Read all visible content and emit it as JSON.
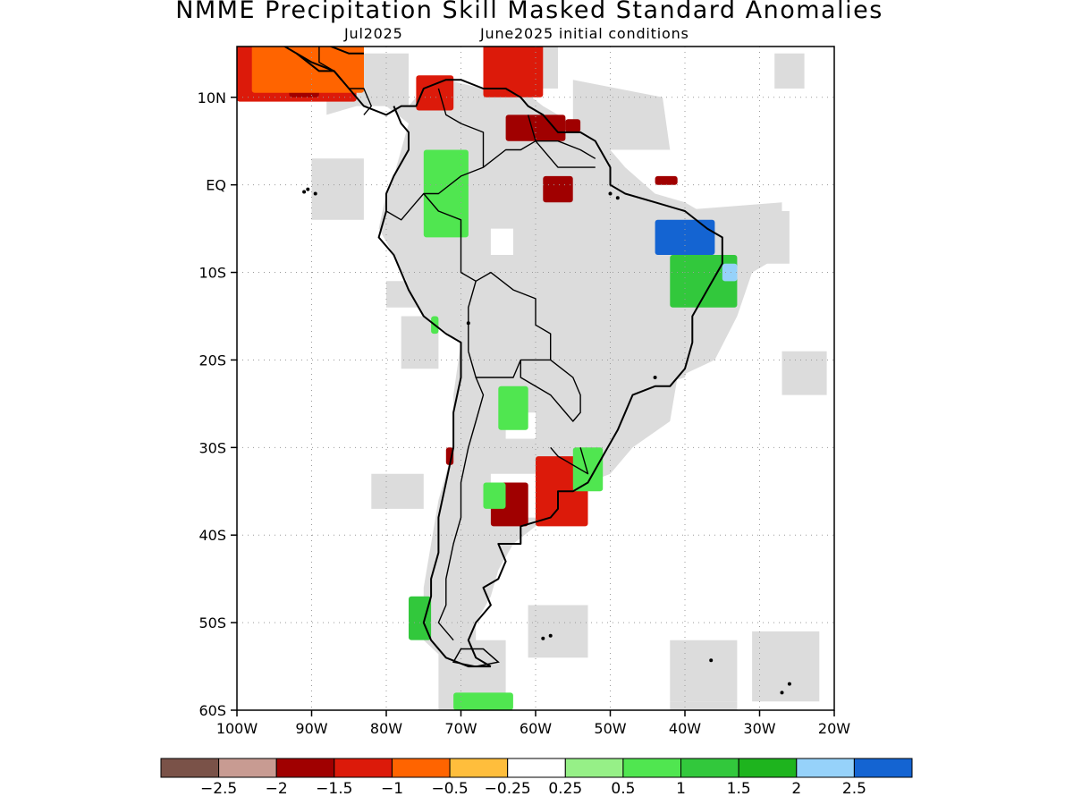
{
  "header": {
    "title": "NMME Precipitation Skill Masked Standard Anomalies",
    "valid_month": "Jul2025",
    "initial_conditions": "June2025 initial conditions"
  },
  "map": {
    "region": "South America",
    "lon_range": [
      -100,
      -20
    ],
    "lat_range": [
      -60,
      15
    ],
    "lat_labels": [
      {
        "lat": 10,
        "label": "10N"
      },
      {
        "lat": 0,
        "label": "EQ"
      },
      {
        "lat": -10,
        "label": "10S"
      },
      {
        "lat": -20,
        "label": "20S"
      },
      {
        "lat": -30,
        "label": "30S"
      },
      {
        "lat": -40,
        "label": "40S"
      },
      {
        "lat": -50,
        "label": "50S"
      },
      {
        "lat": -60,
        "label": "60S"
      }
    ],
    "lon_labels": [
      {
        "lon": -100,
        "label": "100W"
      },
      {
        "lon": -90,
        "label": "90W"
      },
      {
        "lon": -80,
        "label": "80W"
      },
      {
        "lon": -70,
        "label": "70W"
      },
      {
        "lon": -60,
        "label": "60W"
      },
      {
        "lon": -50,
        "label": "50W"
      },
      {
        "lon": -40,
        "label": "40W"
      },
      {
        "lon": -30,
        "label": "30W"
      },
      {
        "lon": -20,
        "label": "20W"
      }
    ],
    "no_skill_color": "#dcdcdc",
    "coast_color": "#000000",
    "grid": "dotted",
    "anomaly_regions": [
      {
        "name": "central-america-pacific",
        "level": "-1",
        "lon": [
          -100,
          -84
        ],
        "lat": [
          9.5,
          16
        ]
      },
      {
        "name": "central-america-strong",
        "level": "-1.5",
        "lon": [
          -93,
          -89
        ],
        "lat": [
          10,
          12
        ]
      },
      {
        "name": "central-america-mild",
        "level": "-0.5",
        "lon": [
          -98,
          -83
        ],
        "lat": [
          10.5,
          16
        ]
      },
      {
        "name": "colombia-north",
        "level": "-1",
        "lon": [
          -76,
          -71
        ],
        "lat": [
          8.5,
          12.5
        ]
      },
      {
        "name": "caribbean-coast",
        "level": "-1",
        "lon": [
          -67,
          -59
        ],
        "lat": [
          10,
          16
        ]
      },
      {
        "name": "venezuela-coast",
        "level": "-1.5",
        "lon": [
          -64,
          -56
        ],
        "lat": [
          5,
          8
        ]
      },
      {
        "name": "guyana-point",
        "level": "-1.5",
        "lon": [
          -56,
          -54
        ],
        "lat": [
          6,
          7.5
        ]
      },
      {
        "name": "colombia-green",
        "level": "1",
        "lon": [
          -75,
          -69
        ],
        "lat": [
          -6,
          4
        ]
      },
      {
        "name": "amazon-mouth-red",
        "level": "-1.5",
        "lon": [
          -59,
          -55
        ],
        "lat": [
          -2,
          1
        ]
      },
      {
        "name": "para-red",
        "level": "-1.5",
        "lon": [
          -44,
          -41
        ],
        "lat": [
          0,
          1
        ]
      },
      {
        "name": "ne-brazil-blue",
        "level": "2.5",
        "lon": [
          -44,
          -36
        ],
        "lat": [
          -8,
          -4
        ]
      },
      {
        "name": "ne-brazil-green",
        "level": "1.5",
        "lon": [
          -42,
          -33
        ],
        "lat": [
          -14,
          -8
        ]
      },
      {
        "name": "ne-brazil-lightblue",
        "level": "2",
        "lon": [
          -35,
          -33
        ],
        "lat": [
          -11,
          -9
        ]
      },
      {
        "name": "peru-green",
        "level": "1",
        "lon": [
          -74,
          -73
        ],
        "lat": [
          -17,
          -15
        ]
      },
      {
        "name": "paraguay-green",
        "level": "1",
        "lon": [
          -65,
          -61
        ],
        "lat": [
          -28,
          -23
        ]
      },
      {
        "name": "chile-red",
        "level": "-1.5",
        "lon": [
          -72,
          -71
        ],
        "lat": [
          -32,
          -30
        ]
      },
      {
        "name": "argentina-red",
        "level": "-1.5",
        "lon": [
          -66,
          -61
        ],
        "lat": [
          -39,
          -34
        ]
      },
      {
        "name": "uruguay-orange",
        "level": "-1",
        "lon": [
          -60,
          -53
        ],
        "lat": [
          -39,
          -31
        ]
      },
      {
        "name": "argentina-west-green",
        "level": "1",
        "lon": [
          -67,
          -64
        ],
        "lat": [
          -37,
          -34
        ]
      },
      {
        "name": "brazil-south-green",
        "level": "1",
        "lon": [
          -55,
          -51
        ],
        "lat": [
          -35,
          -30
        ]
      },
      {
        "name": "patagonia-green",
        "level": "1.5",
        "lon": [
          -77,
          -74
        ],
        "lat": [
          -52,
          -47
        ]
      },
      {
        "name": "drake-green",
        "level": "1",
        "lon": [
          -71,
          -63
        ],
        "lat": [
          -60,
          -58
        ]
      }
    ]
  },
  "colorbar": {
    "colors": [
      "#7a5248",
      "#c89b92",
      "#a00000",
      "#dc1a0a",
      "#ff6400",
      "#ffbe3c",
      "#ffffff",
      "#96f087",
      "#50e650",
      "#32c83c",
      "#1eb41e",
      "#96d2fa",
      "#1464d2"
    ],
    "labels": [
      "−2.5",
      "−2",
      "−1.5",
      "−1",
      "−0.5",
      "−0.25",
      "0.25",
      "0.5",
      "1",
      "1.5",
      "2",
      "2.5"
    ]
  }
}
